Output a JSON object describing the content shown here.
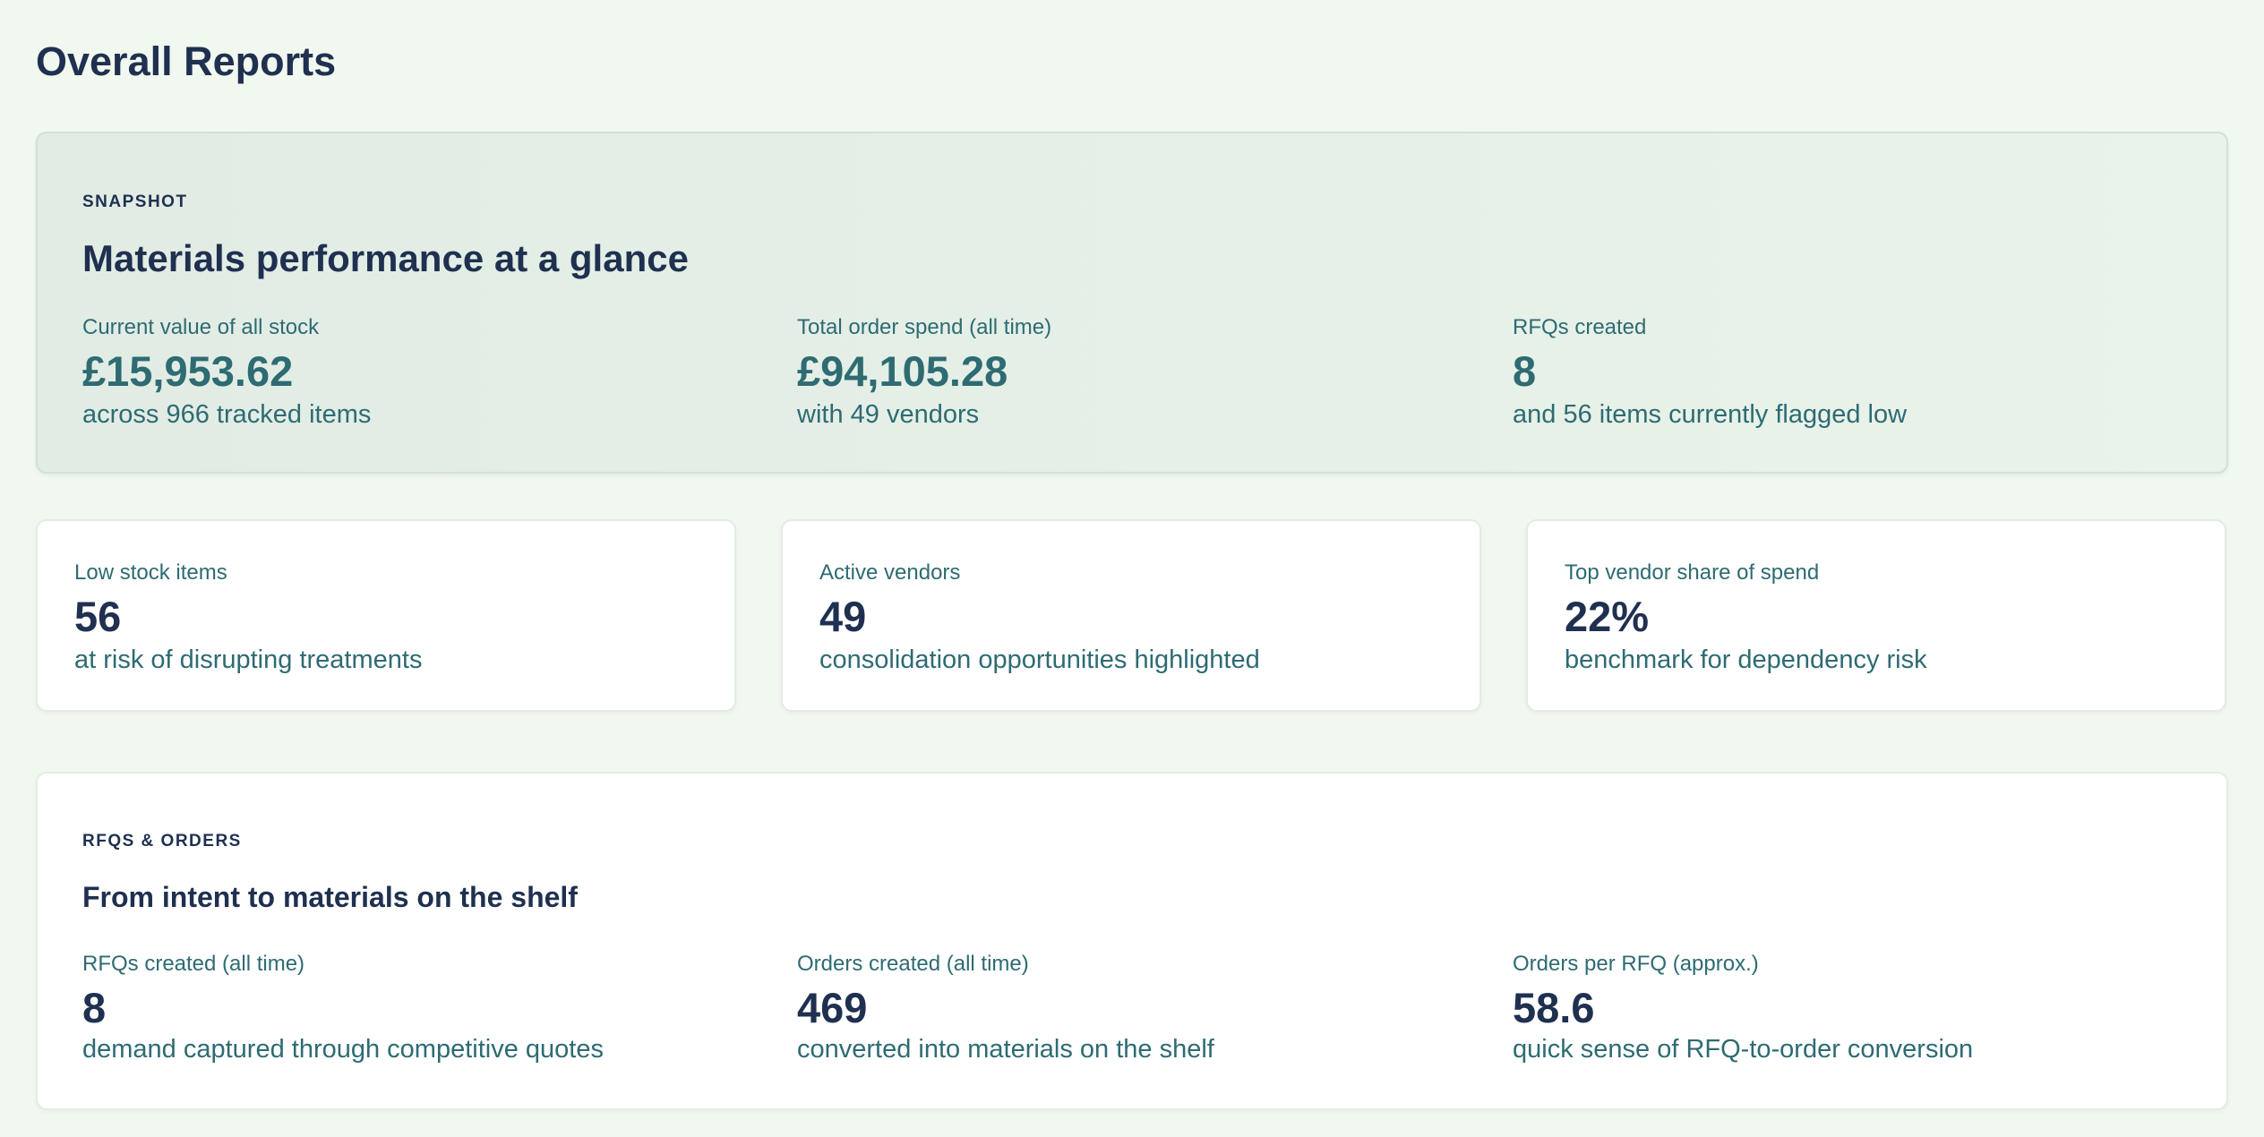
{
  "header": {
    "title": "Overall Reports"
  },
  "snapshot": {
    "eyebrow": "SNAPSHOT",
    "heading": "Materials performance at a glance",
    "metrics": [
      {
        "label": "Current value of all stock",
        "value": "£15,953.62",
        "note": "across 966 tracked items"
      },
      {
        "label": "Total order spend (all time)",
        "value": "£94,105.28",
        "note": "with 49 vendors"
      },
      {
        "label": "RFQs created",
        "value": "8",
        "note": "and 56 items currently flagged low"
      }
    ]
  },
  "cards": [
    {
      "label": "Low stock items",
      "value": "56",
      "note": "at risk of disrupting treatments"
    },
    {
      "label": "Active vendors",
      "value": "49",
      "note": "consolidation opportunities highlighted"
    },
    {
      "label": "Top vendor share of spend",
      "value": "22%",
      "note": "benchmark for dependency risk"
    }
  ],
  "rfqs": {
    "eyebrow": "RFQS & ORDERS",
    "heading": "From intent to materials on the shelf",
    "metrics": [
      {
        "label": "RFQs created (all time)",
        "value": "8",
        "note": "demand captured through competitive quotes"
      },
      {
        "label": "Orders created (all time)",
        "value": "469",
        "note": "converted into materials on the shelf"
      },
      {
        "label": "Orders per RFQ (approx.)",
        "value": "58.6",
        "note": "quick sense of RFQ-to-order conversion"
      }
    ]
  }
}
